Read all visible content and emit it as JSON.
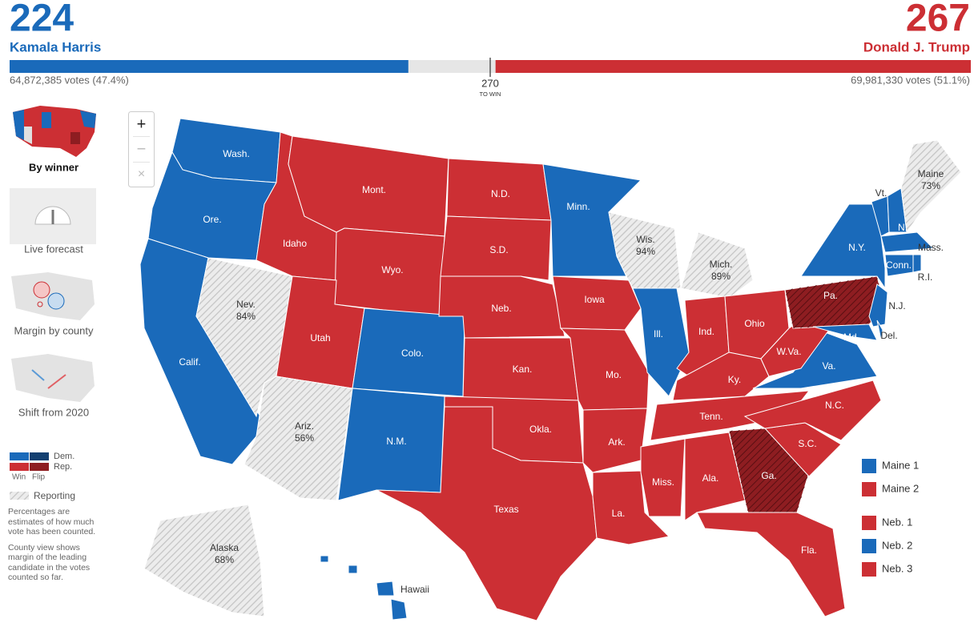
{
  "header": {
    "dem": {
      "electoral_votes": 224,
      "name": "Kamala Harris",
      "votes": "64,872,385 votes (47.4%)",
      "color": "#1a6aba"
    },
    "rep": {
      "electoral_votes": 267,
      "name": "Donald J. Trump",
      "votes": "69,981,330 votes (51.1%)",
      "color": "#cc2f34"
    },
    "threshold": {
      "value": 270,
      "caption": "TO WIN"
    }
  },
  "zoom_controls": [
    "+",
    "−",
    "×"
  ],
  "views": [
    "By winner",
    "Live forecast",
    "Margin by county",
    "Shift from 2020"
  ],
  "key": {
    "dem": "Dem.",
    "rep": "Rep.",
    "win": "Win",
    "flip": "Flip",
    "reporting": "Reporting",
    "notes": [
      "Percentages are estimates of how much vote has been counted.",
      "County view shows margin of the leading candidate in the votes counted so far."
    ]
  },
  "colors": {
    "dem": "#1a6aba",
    "rep": "#cc2f34",
    "flip": "#8e1d21",
    "reporting": "#dcdcdc"
  },
  "states": [
    {
      "label": "Wash.",
      "result": "dem"
    },
    {
      "label": "Ore.",
      "result": "dem"
    },
    {
      "label": "Calif.",
      "result": "dem"
    },
    {
      "label": "Nev.",
      "pct": "84%",
      "result": "reporting"
    },
    {
      "label": "Idaho",
      "result": "rep"
    },
    {
      "label": "Mont.",
      "result": "rep"
    },
    {
      "label": "Wyo.",
      "result": "rep"
    },
    {
      "label": "Utah",
      "result": "rep"
    },
    {
      "label": "Colo.",
      "result": "dem"
    },
    {
      "label": "Ariz.",
      "pct": "56%",
      "result": "reporting"
    },
    {
      "label": "N.M.",
      "result": "dem"
    },
    {
      "label": "N.D.",
      "result": "rep"
    },
    {
      "label": "S.D.",
      "result": "rep"
    },
    {
      "label": "Neb.",
      "result": "rep"
    },
    {
      "label": "Kan.",
      "result": "rep"
    },
    {
      "label": "Okla.",
      "result": "rep"
    },
    {
      "label": "Texas",
      "result": "rep"
    },
    {
      "label": "Minn.",
      "result": "dem"
    },
    {
      "label": "Iowa",
      "result": "rep"
    },
    {
      "label": "Mo.",
      "result": "rep"
    },
    {
      "label": "Ark.",
      "result": "rep"
    },
    {
      "label": "La.",
      "result": "rep"
    },
    {
      "label": "Wis.",
      "pct": "94%",
      "result": "reporting"
    },
    {
      "label": "Ill.",
      "result": "dem"
    },
    {
      "label": "Mich.",
      "pct": "89%",
      "result": "reporting"
    },
    {
      "label": "Ind.",
      "result": "rep"
    },
    {
      "label": "Ohio",
      "result": "rep"
    },
    {
      "label": "Ky.",
      "result": "rep"
    },
    {
      "label": "Tenn.",
      "result": "rep"
    },
    {
      "label": "Miss.",
      "result": "rep"
    },
    {
      "label": "Ala.",
      "result": "rep"
    },
    {
      "label": "Ga.",
      "result": "flip"
    },
    {
      "label": "Fla.",
      "result": "rep"
    },
    {
      "label": "S.C.",
      "result": "rep"
    },
    {
      "label": "N.C.",
      "result": "rep"
    },
    {
      "label": "Va.",
      "result": "dem"
    },
    {
      "label": "W.Va.",
      "result": "rep"
    },
    {
      "label": "Pa.",
      "result": "flip"
    },
    {
      "label": "N.Y.",
      "result": "dem"
    },
    {
      "label": "N.J.",
      "result": "dem"
    },
    {
      "label": "Md.",
      "result": "dem"
    },
    {
      "label": "Del.",
      "result": "dem"
    },
    {
      "label": "Vt.",
      "result": "dem"
    },
    {
      "label": "N.H.",
      "result": "dem"
    },
    {
      "label": "Maine",
      "pct": "73%",
      "result": "reporting"
    },
    {
      "label": "Mass.",
      "result": "dem"
    },
    {
      "label": "Conn.",
      "result": "dem"
    },
    {
      "label": "R.I.",
      "result": "dem"
    },
    {
      "label": "Alaska",
      "pct": "68%",
      "result": "reporting"
    },
    {
      "label": "Hawaii",
      "result": "dem"
    }
  ],
  "districts": [
    {
      "label": "Maine 1",
      "result": "dem"
    },
    {
      "label": "Maine 2",
      "result": "rep"
    },
    {
      "label": "Neb. 1",
      "result": "rep"
    },
    {
      "label": "Neb. 2",
      "result": "dem"
    },
    {
      "label": "Neb. 3",
      "result": "rep"
    }
  ]
}
